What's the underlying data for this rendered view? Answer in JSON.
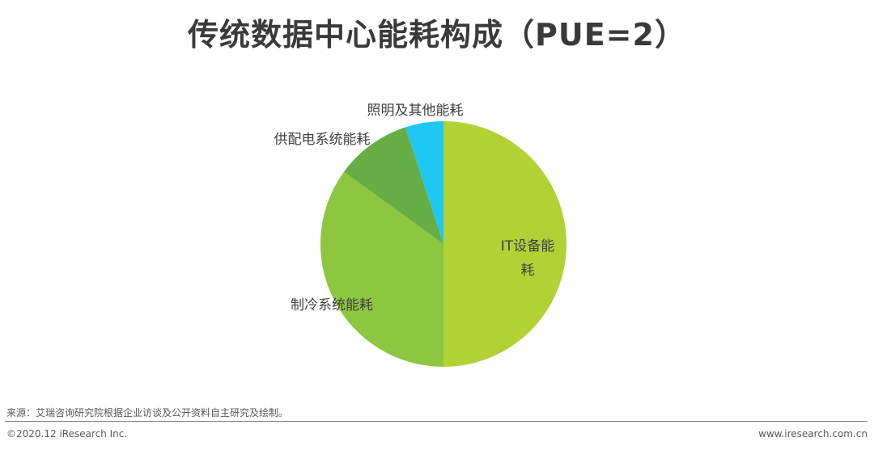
{
  "chart_data": {
    "type": "pie",
    "title": "传统数据中心能耗构成（PUE=2）",
    "slices": [
      {
        "label_lines": [
          "IT设备能",
          "耗"
        ],
        "value": 50,
        "color": "#b1d135"
      },
      {
        "label_lines": [
          "制冷系统能耗"
        ],
        "value": 35,
        "color": "#8dc63f"
      },
      {
        "label_lines": [
          "供配电系统能耗"
        ],
        "value": 10,
        "color": "#66ad45"
      },
      {
        "label_lines": [
          "照明及其他能耗"
        ],
        "value": 5,
        "color": "#1fc8f1"
      }
    ]
  },
  "footer": {
    "source": "来源：艾瑞咨询研究院根据企业访谈及公开资料自主研究及绘制。",
    "copyright": "©2020.12 iResearch Inc.",
    "website": "www.iresearch.com.cn"
  }
}
